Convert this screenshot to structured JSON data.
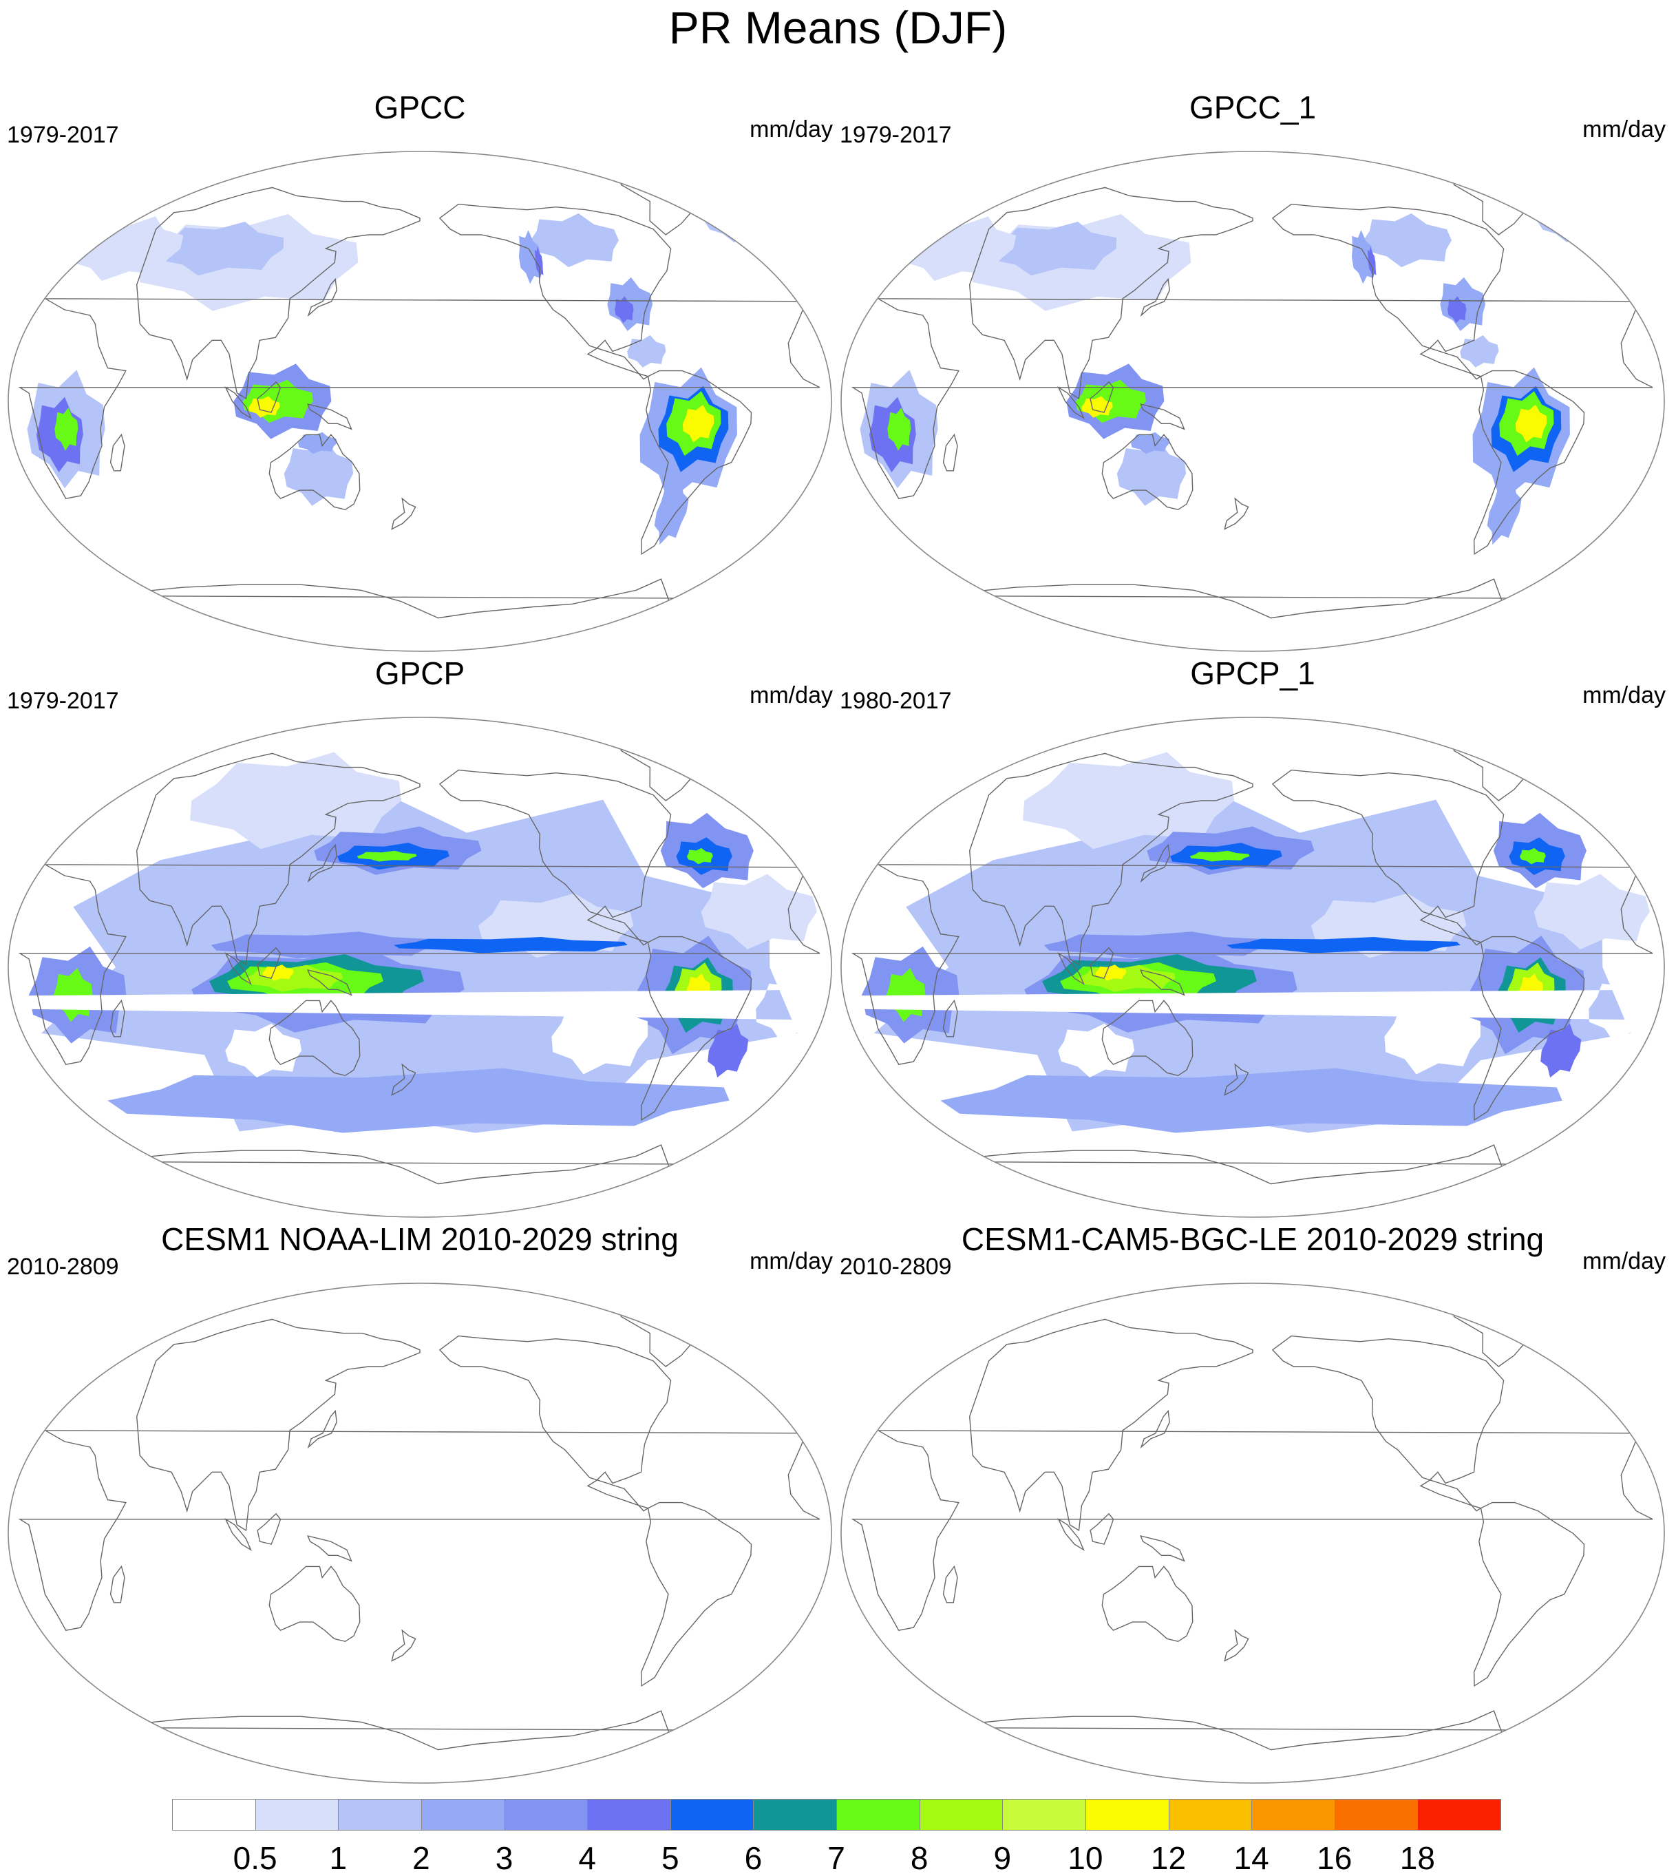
{
  "figure": {
    "title": "PR Means (DJF)"
  },
  "panels": [
    {
      "title": "GPCC",
      "period": "1979-2017",
      "units": "mm/day",
      "field": "gpcc"
    },
    {
      "title": "GPCC_1",
      "period": "1979-2017",
      "units": "mm/day",
      "field": "gpcc"
    },
    {
      "title": "GPCP",
      "period": "1979-2017",
      "units": "mm/day",
      "field": "gpcp"
    },
    {
      "title": "GPCP_1",
      "period": "1980-2017",
      "units": "mm/day",
      "field": "gpcp"
    },
    {
      "title": "CESM1 NOAA-LIM 2010-2029 string",
      "period": "2010-2809",
      "units": "mm/day",
      "field": "empty"
    },
    {
      "title": "CESM1-CAM5-BGC-LE 2010-2029 string",
      "period": "2010-2809",
      "units": "mm/day",
      "field": "empty"
    }
  ],
  "colorbar": {
    "labels": [
      "0.5",
      "1",
      "2",
      "3",
      "4",
      "5",
      "6",
      "7",
      "8",
      "9",
      "10",
      "12",
      "14",
      "16",
      "18"
    ],
    "colors": [
      "#ffffff",
      "#d7dffa",
      "#b4c4f8",
      "#94aaf6",
      "#8294f2",
      "#6c72f2",
      "#1064f4",
      "#109696",
      "#66fa16",
      "#a4fa10",
      "#c8fa3c",
      "#fafa00",
      "#fac000",
      "#fa9600",
      "#fa7000",
      "#fa2000"
    ]
  },
  "projection": "Robinson",
  "central_longitude": 180
}
